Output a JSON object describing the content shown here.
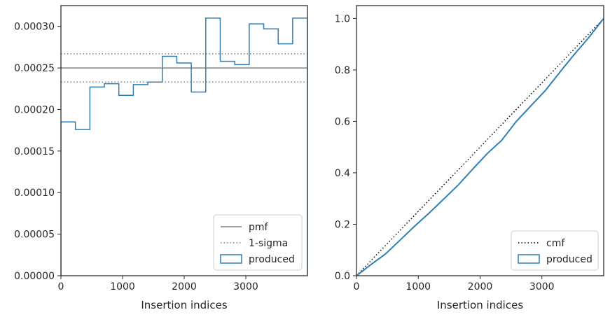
{
  "chart_data": [
    {
      "type": "histogram",
      "xlabel": "Insertion indices",
      "ylabel": "",
      "xlim": [
        0,
        4000
      ],
      "ylim": [
        0,
        0.000325
      ],
      "xticks": [
        0,
        1000,
        2000,
        3000
      ],
      "xtick_labels": [
        "0",
        "1000",
        "2000",
        "3000"
      ],
      "yticks": [
        0,
        5e-05,
        0.0001,
        0.00015,
        0.0002,
        0.00025,
        0.0003
      ],
      "ytick_labels": [
        "0.00000",
        "0.00005",
        "0.00010",
        "0.00015",
        "0.00020",
        "0.00025",
        "0.00030"
      ],
      "bin_edges": [
        0,
        235,
        470,
        705,
        940,
        1175,
        1410,
        1645,
        1880,
        2115,
        2350,
        2585,
        2820,
        3055,
        3290,
        3525,
        3760,
        4000
      ],
      "series": [
        {
          "name": "produced",
          "color": "#2f7fb5",
          "values": [
            0.000185,
            0.000176,
            0.000227,
            0.000231,
            0.000217,
            0.00023,
            0.000233,
            0.000264,
            0.000256,
            0.000221,
            0.00031,
            0.000258,
            0.000254,
            0.000303,
            0.000297,
            0.000279,
            0.00031
          ]
        }
      ],
      "reference_lines": [
        {
          "name": "pmf",
          "y": 0.00025,
          "style": "solid",
          "color": "#808080"
        },
        {
          "name": "1-sigma",
          "y": 0.000267,
          "style": "dotted",
          "color": "#808080"
        },
        {
          "name": "1-sigma",
          "y": 0.000233,
          "style": "dotted",
          "color": "#808080"
        }
      ],
      "legend": {
        "placement": "lower-right",
        "entries": [
          "pmf",
          "1-sigma",
          "produced"
        ]
      },
      "grid": false
    },
    {
      "type": "line",
      "xlabel": "Insertion indices",
      "ylabel": "",
      "xlim": [
        0,
        4000
      ],
      "ylim": [
        0,
        1.05
      ],
      "xticks": [
        0,
        1000,
        2000,
        3000
      ],
      "xtick_labels": [
        "0",
        "1000",
        "2000",
        "3000"
      ],
      "yticks": [
        0,
        0.2,
        0.4,
        0.6,
        0.8,
        1.0
      ],
      "ytick_labels": [
        "0.0",
        "0.2",
        "0.4",
        "0.6",
        "0.8",
        "1.0"
      ],
      "series": [
        {
          "name": "cmf",
          "style": "dotted",
          "color": "#000000",
          "x": [
            0,
            4000
          ],
          "y": [
            0,
            1.0
          ]
        },
        {
          "name": "produced",
          "style": "step",
          "color": "#2f7fb5",
          "x": [
            0,
            235,
            470,
            705,
            940,
            1175,
            1410,
            1645,
            1880,
            2115,
            2350,
            2585,
            2820,
            3055,
            3290,
            3525,
            3760,
            4000
          ],
          "y": [
            0,
            0.0435,
            0.0848,
            0.1382,
            0.1925,
            0.2435,
            0.2975,
            0.3523,
            0.4143,
            0.4745,
            0.5264,
            0.5993,
            0.6599,
            0.7196,
            0.7908,
            0.8606,
            0.9262,
            1.0
          ]
        }
      ],
      "legend": {
        "placement": "lower-right",
        "entries": [
          "cmf",
          "produced"
        ]
      },
      "grid": false
    }
  ]
}
